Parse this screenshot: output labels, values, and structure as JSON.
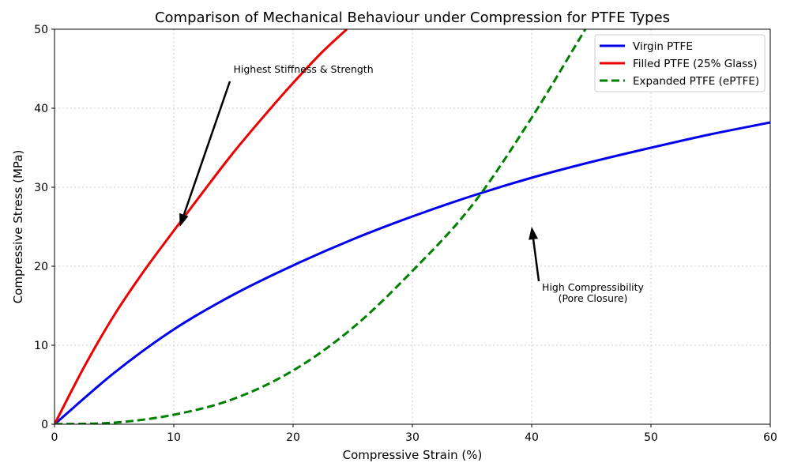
{
  "chart_data": {
    "type": "line",
    "title": "Comparison of Mechanical Behaviour under Compression for PTFE Types",
    "xlabel": "Compressive Strain (%)",
    "ylabel": "Compressive Stress (MPa)",
    "xlim": [
      0,
      60
    ],
    "ylim": [
      0,
      50
    ],
    "xticks": [
      0,
      10,
      20,
      30,
      40,
      50,
      60
    ],
    "yticks": [
      0,
      10,
      20,
      30,
      40,
      50
    ],
    "grid": true,
    "legend_position": "top-right",
    "series": [
      {
        "name": "Virgin PTFE",
        "color": "#0000ee",
        "style": "solid",
        "x": [
          0,
          5,
          10,
          15,
          20,
          25,
          30,
          35,
          40,
          45,
          50,
          55,
          60
        ],
        "y": [
          0,
          6.5,
          12,
          16.4,
          20.1,
          23.4,
          26.3,
          28.9,
          31.2,
          33.2,
          35.0,
          36.7,
          38.2
        ]
      },
      {
        "name": "Filled PTFE (25% Glass)",
        "color": "#ee0000",
        "style": "solid",
        "x": [
          0,
          2.5,
          5,
          7.5,
          10,
          12.5,
          15,
          17.5,
          20,
          22.5,
          24.5
        ],
        "y": [
          0,
          7.3,
          13.8,
          19.4,
          24.5,
          29.5,
          34.4,
          38.9,
          43.2,
          47.2,
          50
        ]
      },
      {
        "name": "Expanded PTFE (ePTFE)",
        "color": "#008000",
        "style": "dashed",
        "x": [
          0,
          5,
          10,
          15,
          20,
          25,
          30,
          35,
          40,
          44.5
        ],
        "y": [
          0,
          0.2,
          1.2,
          3.2,
          6.8,
          12.2,
          19.4,
          27.7,
          38.8,
          50
        ]
      }
    ],
    "annotations": [
      {
        "id": "stiffness",
        "text": "Highest Stiffness & Strength",
        "text_xy": [
          15,
          45
        ],
        "arrow_to": [
          10.5,
          25.0
        ]
      },
      {
        "id": "compressibility",
        "lines": [
          "High Compressibility",
          "(Pore Closure)"
        ],
        "text_xy": [
          45,
          17
        ],
        "arrow_to": [
          40,
          25
        ]
      }
    ]
  }
}
